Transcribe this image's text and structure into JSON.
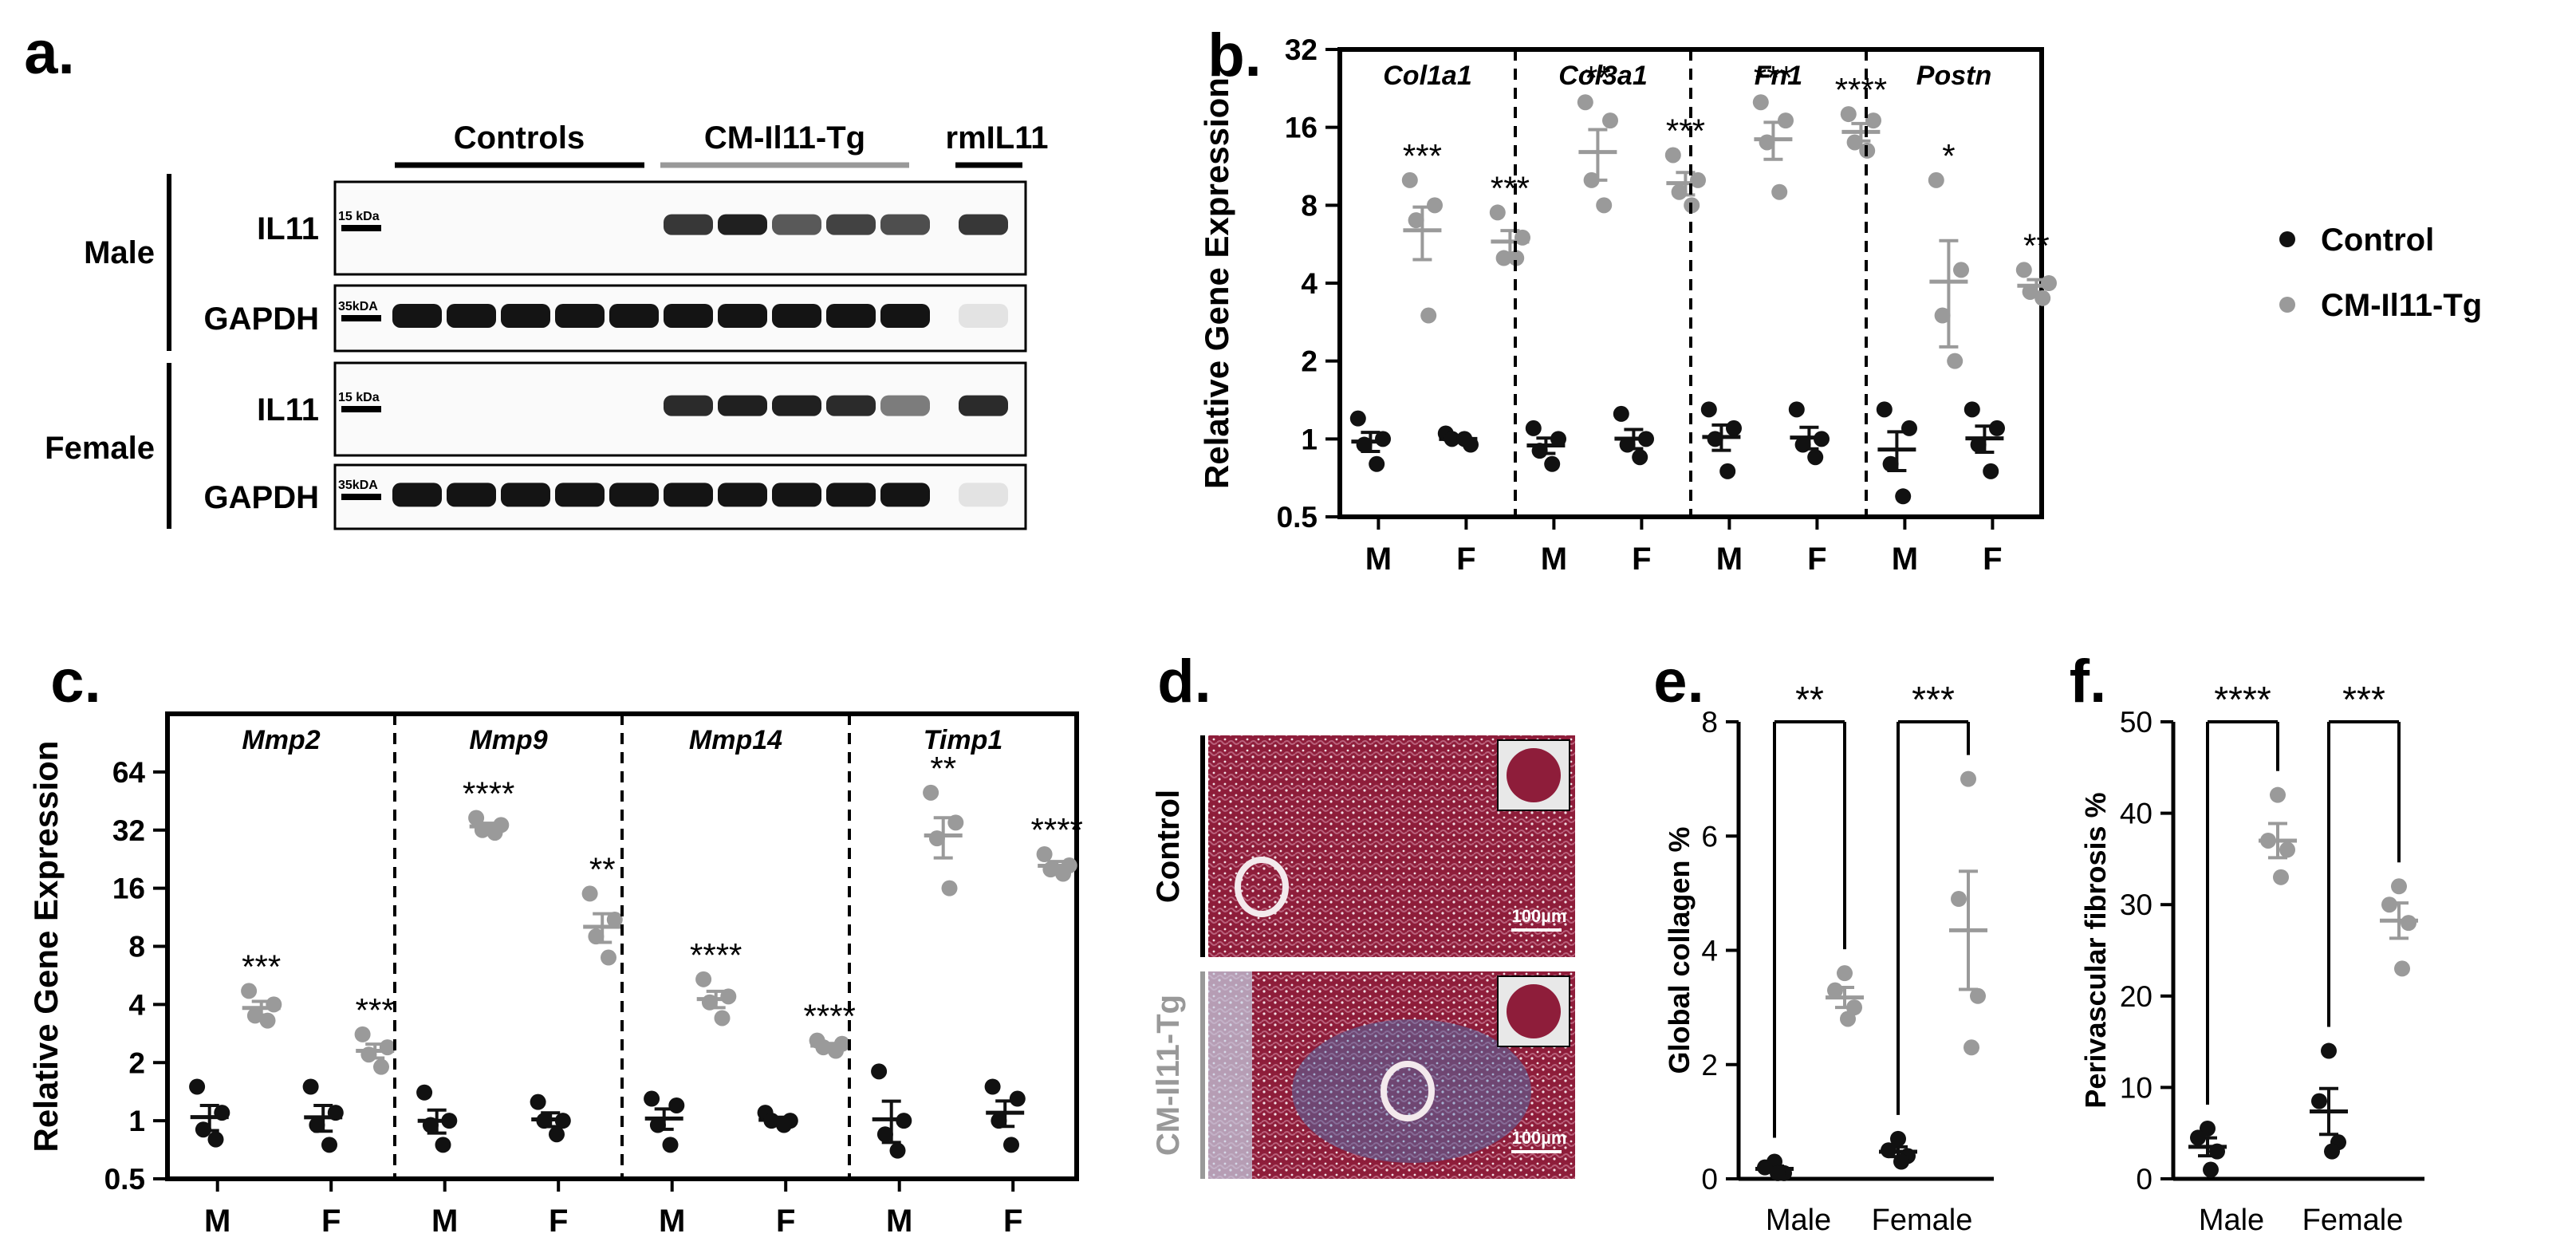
{
  "panels": {
    "a": {
      "letter": "a.",
      "groups": [
        {
          "label": "Controls",
          "lanes": 5
        },
        {
          "label": "CM-Il11-Tg",
          "lanes": 5
        },
        {
          "label": "rmIL11",
          "lanes": 1
        }
      ],
      "sexes": [
        "Male",
        "Female"
      ],
      "blots": [
        {
          "sex": "Male",
          "target": "IL11",
          "marker": "15 kDa",
          "band_intensity": [
            0,
            0,
            0,
            0,
            0,
            0.85,
            0.95,
            0.7,
            0.8,
            0.75,
            0.85
          ]
        },
        {
          "sex": "Male",
          "target": "GAPDH",
          "marker": "35kDA",
          "band_intensity": [
            1,
            1,
            1,
            1,
            1,
            1,
            1,
            1,
            1,
            1,
            0.1
          ]
        },
        {
          "sex": "Female",
          "target": "IL11",
          "marker": "15 kDa",
          "band_intensity": [
            0,
            0,
            0,
            0,
            0,
            0.9,
            0.95,
            0.95,
            0.9,
            0.55,
            0.9
          ]
        },
        {
          "sex": "Female",
          "target": "GAPDH",
          "marker": "35kDA",
          "band_intensity": [
            1,
            1,
            1,
            1,
            1,
            1,
            1,
            1,
            1,
            1,
            0.1
          ]
        }
      ]
    },
    "b": {
      "letter": "b."
    },
    "c": {
      "letter": "c."
    },
    "d": {
      "letter": "d.",
      "rows": [
        {
          "label": "Control",
          "scale_bar": "100µm"
        },
        {
          "label": "CM-Il11-Tg",
          "scale_bar": "100µm"
        }
      ]
    },
    "e": {
      "letter": "e."
    },
    "f": {
      "letter": "f."
    }
  },
  "legend": {
    "items": [
      {
        "label": "Control",
        "color": "#111111"
      },
      {
        "label": "CM-Il11-Tg",
        "color": "#9a9a9a"
      }
    ]
  },
  "colors": {
    "control": "#111111",
    "transgenic": "#9a9a9a"
  },
  "chart_data": [
    {
      "id": "b",
      "type": "scatter",
      "ylabel": "Relative Gene Expression",
      "yscale": "log2",
      "ylim": [
        0.5,
        32
      ],
      "yticks": [
        "0.5",
        "1",
        "2",
        "4",
        "8",
        "16",
        "32"
      ],
      "xtick_labels": [
        "M",
        "F"
      ],
      "groups": [
        {
          "gene": "Col1a1",
          "control": {
            "M": [
              1.2,
              1.0,
              0.95,
              0.8
            ],
            "F": [
              1.05,
              0.95,
              1.0,
              1.0
            ]
          },
          "transgenic": {
            "M": [
              10,
              8,
              7,
              3
            ],
            "F": [
              7.5,
              6,
              5,
              5
            ]
          },
          "stars": {
            "M": "***",
            "F": "***"
          }
        },
        {
          "gene": "Col3a1",
          "control": {
            "M": [
              1.1,
              1.0,
              0.9,
              0.8
            ],
            "F": [
              1.25,
              1.0,
              0.95,
              0.85
            ]
          },
          "transgenic": {
            "M": [
              20,
              17,
              10,
              8
            ],
            "F": [
              12.5,
              10,
              9,
              8
            ]
          },
          "stars": {
            "M": "**",
            "F": "***"
          }
        },
        {
          "gene": "Fn1",
          "control": {
            "M": [
              1.3,
              1.1,
              1.0,
              0.75
            ],
            "F": [
              1.3,
              1.0,
              0.95,
              0.85
            ]
          },
          "transgenic": {
            "M": [
              20,
              17,
              14,
              9
            ],
            "F": [
              18,
              17,
              14,
              13
            ]
          },
          "stars": {
            "M": "***",
            "F": "****"
          }
        },
        {
          "gene": "Postn",
          "control": {
            "M": [
              1.3,
              1.1,
              0.8,
              0.6
            ],
            "F": [
              1.3,
              1.1,
              0.95,
              0.75
            ]
          },
          "transgenic": {
            "M": [
              10,
              4.5,
              3,
              2
            ],
            "F": [
              4.5,
              4.0,
              3.7,
              3.5
            ]
          },
          "stars": {
            "M": "*",
            "F": "**"
          }
        }
      ]
    },
    {
      "id": "c",
      "type": "scatter",
      "ylabel": "Relative Gene Expression",
      "yscale": "log2",
      "ylim": [
        0.5,
        128
      ],
      "yticks": [
        "0.5",
        "1",
        "2",
        "4",
        "8",
        "16",
        "32",
        "64"
      ],
      "xtick_labels": [
        "M",
        "F"
      ],
      "groups": [
        {
          "gene": "Mmp2",
          "control": {
            "M": [
              1.5,
              1.1,
              0.9,
              0.8
            ],
            "F": [
              1.5,
              1.1,
              0.95,
              0.75
            ]
          },
          "transgenic": {
            "M": [
              4.7,
              4.0,
              3.5,
              3.3
            ],
            "F": [
              2.8,
              2.4,
              2.2,
              1.9
            ]
          },
          "stars": {
            "M": "***",
            "F": "***"
          }
        },
        {
          "gene": "Mmp9",
          "control": {
            "M": [
              1.4,
              1.0,
              0.95,
              0.75
            ],
            "F": [
              1.25,
              1.0,
              1.0,
              0.85
            ]
          },
          "transgenic": {
            "M": [
              37,
              34,
              32,
              31
            ],
            "F": [
              15,
              11,
              9,
              7
            ]
          },
          "stars": {
            "M": "****",
            "F": "**"
          }
        },
        {
          "gene": "Mmp14",
          "control": {
            "M": [
              1.3,
              1.2,
              0.95,
              0.75
            ],
            "F": [
              1.1,
              1.0,
              1.0,
              0.95
            ]
          },
          "transgenic": {
            "M": [
              5.4,
              4.4,
              4.1,
              3.4
            ],
            "F": [
              2.6,
              2.5,
              2.4,
              2.3
            ]
          },
          "stars": {
            "M": "****",
            "F": "****"
          }
        },
        {
          "gene": "Timp1",
          "control": {
            "M": [
              1.8,
              1.0,
              0.85,
              0.7
            ],
            "F": [
              1.5,
              1.3,
              1.0,
              0.75
            ]
          },
          "transgenic": {
            "M": [
              50,
              35,
              29,
              16
            ],
            "F": [
              24,
              21,
              20,
              19
            ]
          },
          "stars": {
            "M": "**",
            "F": "****"
          }
        }
      ]
    },
    {
      "id": "e",
      "type": "scatter",
      "ylabel": "Global collagen %",
      "ylim": [
        0,
        8
      ],
      "yticks": [
        "0",
        "2",
        "4",
        "6",
        "8"
      ],
      "categories": [
        "Male",
        "Female"
      ],
      "control": {
        "Male": [
          0.3,
          0.2,
          0.1,
          0.1
        ],
        "Female": [
          0.7,
          0.5,
          0.4,
          0.3
        ]
      },
      "transgenic": {
        "Male": [
          3.6,
          3.3,
          3.0,
          2.8
        ],
        "Female": [
          7.0,
          4.9,
          3.2,
          2.3
        ]
      },
      "stars": {
        "Male": "**",
        "Female": "***"
      }
    },
    {
      "id": "f",
      "type": "scatter",
      "ylabel": "Perivascular fibrosis %",
      "ylim": [
        0,
        50
      ],
      "yticks": [
        "0",
        "10",
        "20",
        "30",
        "40",
        "50"
      ],
      "categories": [
        "Male",
        "Female"
      ],
      "control": {
        "Male": [
          5.5,
          4.5,
          3.0,
          1.0
        ],
        "Female": [
          14,
          8.5,
          4.0,
          3.0
        ]
      },
      "transgenic": {
        "Male": [
          42,
          37,
          36,
          33
        ],
        "Female": [
          32,
          30,
          28,
          23
        ]
      },
      "stars": {
        "Male": "****",
        "Female": "***"
      }
    }
  ]
}
